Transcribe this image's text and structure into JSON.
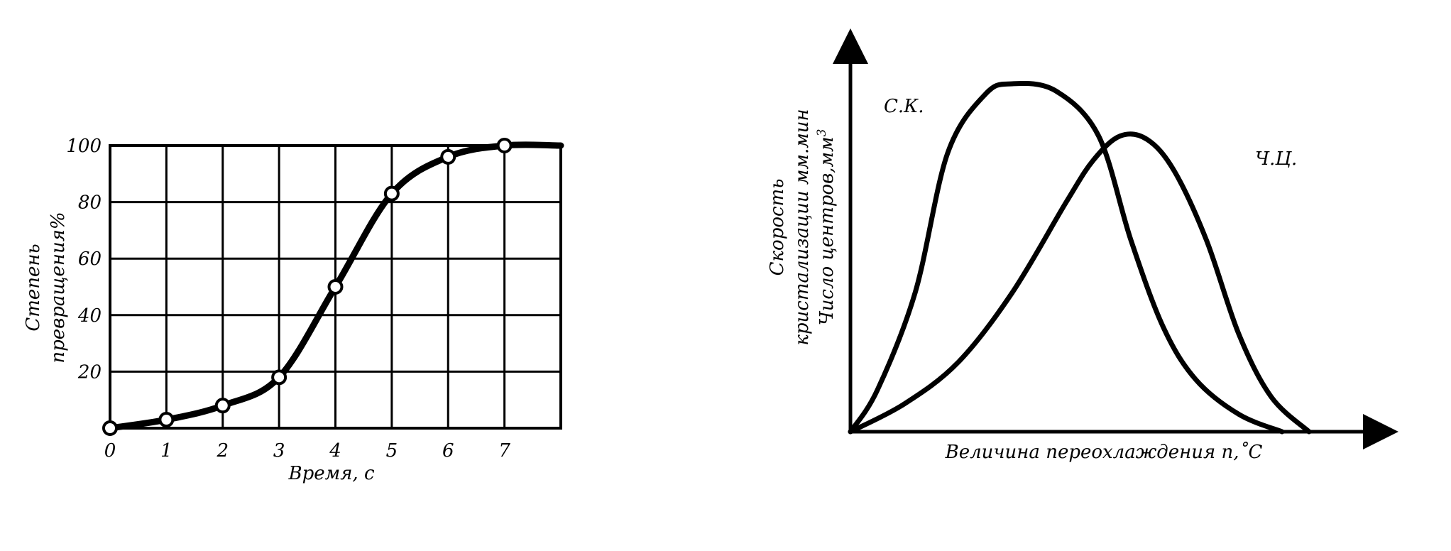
{
  "chart_data": [
    {
      "type": "line",
      "xlabel": "Время, с",
      "ylabel": [
        "Степень",
        "превращения%"
      ],
      "x_ticks": [
        "0",
        "1",
        "2",
        "3",
        "4",
        "5",
        "6",
        "7"
      ],
      "y_ticks": [
        "20",
        "40",
        "60",
        "80",
        "100"
      ],
      "xlim": [
        0,
        8
      ],
      "ylim": [
        0,
        100
      ],
      "grid": true,
      "series": [
        {
          "points": [
            {
              "x": 0,
              "y": 0
            },
            {
              "x": 1,
              "y": 3
            },
            {
              "x": 2,
              "y": 8
            },
            {
              "x": 3,
              "y": 18
            },
            {
              "x": 4,
              "y": 50
            },
            {
              "x": 5,
              "y": 83
            },
            {
              "x": 6,
              "y": 96
            },
            {
              "x": 7,
              "y": 100
            }
          ]
        }
      ]
    },
    {
      "type": "line",
      "xlabel": "Величина переохлаждения n,˚С",
      "ylabel": [
        "Скорость",
        "кристализации мм.мин",
        "Число центров,мм"
      ],
      "ylabel_superscript": "3",
      "grid": false,
      "series": [
        {
          "name": "С.К.",
          "x": [
            0,
            5,
            12,
            18,
            25,
            30,
            38,
            46,
            52,
            58,
            64,
            72,
            80
          ],
          "y": [
            0,
            12,
            40,
            80,
            97,
            100,
            98,
            85,
            55,
            30,
            15,
            5,
            0
          ]
        },
        {
          "name": "Ч.Ц.",
          "x": [
            0,
            10,
            20,
            30,
            40,
            45,
            50,
            55,
            60,
            66,
            72,
            78,
            85
          ],
          "y": [
            0,
            8,
            20,
            40,
            66,
            78,
            85,
            84,
            75,
            55,
            28,
            10,
            0
          ]
        }
      ]
    }
  ]
}
